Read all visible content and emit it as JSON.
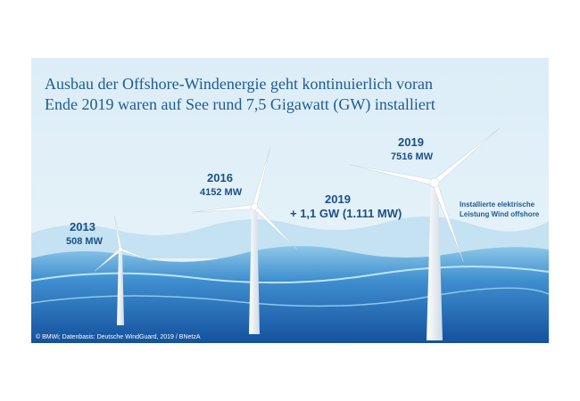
{
  "header": {
    "title_lines": [
      "Ausbau der Offshore-Windenergie geht kontinuierlich voran",
      "Ende 2019 waren auf See rund 7,5 Gigawatt (GW) installiert"
    ]
  },
  "labels": [
    {
      "year": "2013",
      "value": "508 MW"
    },
    {
      "year": "2016",
      "value": "4152 MW"
    },
    {
      "year": "2019",
      "value": "7516 MW"
    }
  ],
  "addition": {
    "year": "2019",
    "value": "+ 1,1 GW (1.111 MW)"
  },
  "side_note": [
    "Installierte elektrische",
    "Leistung Wind offshore"
  ],
  "credit": "© BMWi; Datenbasis: Deutsche WindGuard, 2019 / BNetzA"
}
